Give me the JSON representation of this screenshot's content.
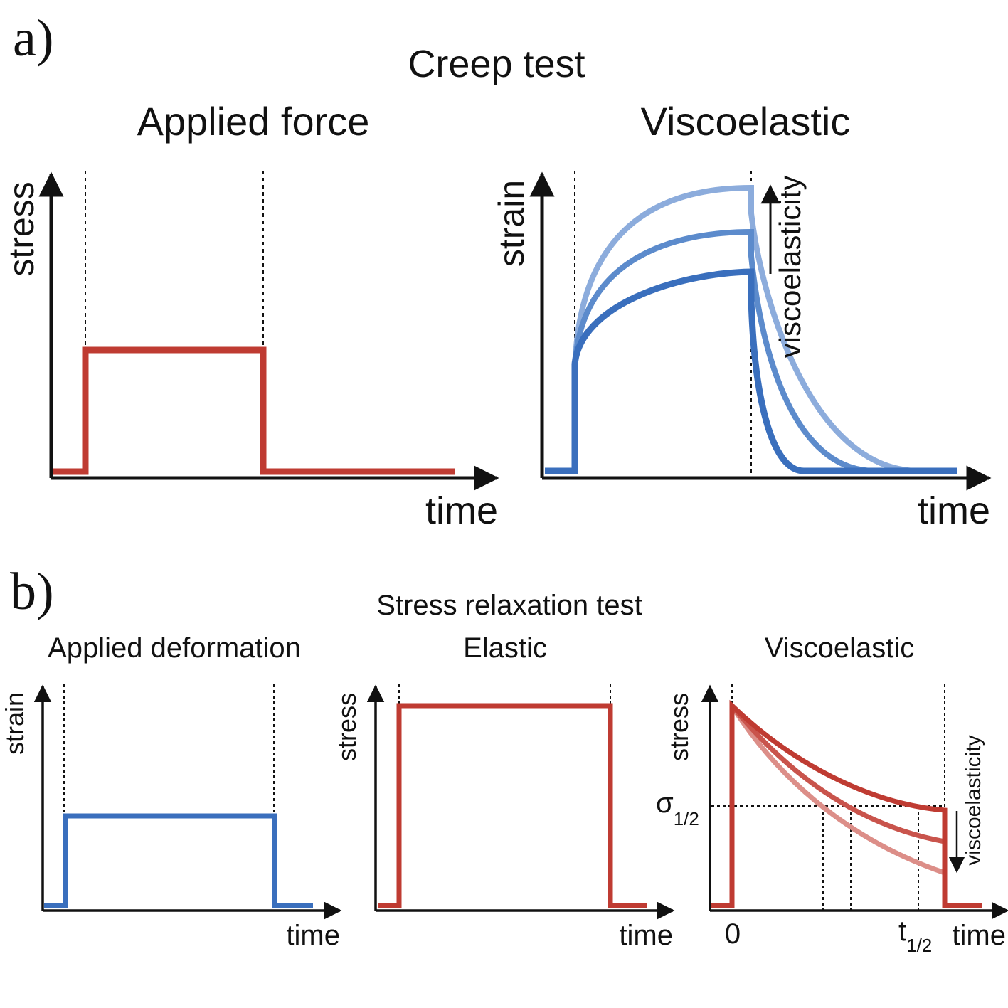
{
  "panel_a": {
    "letter": "a)",
    "title": "Creep test",
    "left": {
      "subtitle": "Applied force",
      "ylabel": "stress",
      "xlabel": "time"
    },
    "right": {
      "subtitle": "Viscoelastic",
      "ylabel": "strain",
      "xlabel": "time",
      "arrow_label": "viscoelasticity"
    }
  },
  "panel_b": {
    "letter": "b)",
    "title": "Stress relaxation test",
    "p1": {
      "subtitle": "Applied deformation",
      "ylabel": "strain",
      "xlabel": "time"
    },
    "p2": {
      "subtitle": "Elastic",
      "ylabel": "stress",
      "xlabel": "time"
    },
    "p3": {
      "subtitle": "Viscoelastic",
      "ylabel": "stress",
      "xlabel": "time",
      "arrow_label": "viscoelasticity",
      "x_origin_label": "0",
      "sigma_symbol": "σ",
      "sigma_sub": "1/2",
      "t_symbol": "t",
      "t_sub": "1/2"
    }
  },
  "colors": {
    "red": "#bf3b32",
    "blue": "#3a6fbd",
    "blue_mid": "#5c8bcc",
    "blue_light": "#8cacdc",
    "red_mid": "#c9544c",
    "red_light": "#dc8e88",
    "axis": "#111111"
  }
}
